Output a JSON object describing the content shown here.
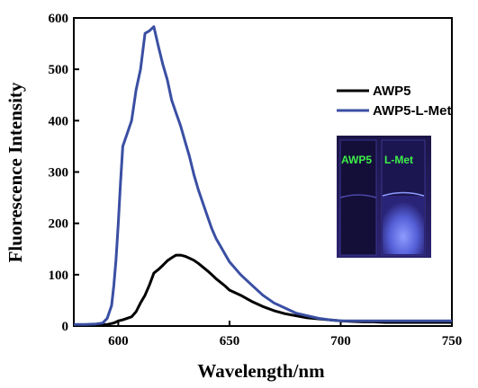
{
  "chart_data": {
    "type": "line",
    "xlabel": "Wavelength/nm",
    "ylabel": "Fluorescence Intensity",
    "xlim": [
      580,
      750
    ],
    "ylim": [
      0,
      600
    ],
    "xticks": [
      600,
      650,
      700,
      750
    ],
    "yticks": [
      0,
      100,
      200,
      300,
      400,
      500,
      600
    ],
    "grid": false,
    "legend": "top-right",
    "series": [
      {
        "name": "AWP5",
        "color": "#000000",
        "x": [
          580,
          585,
          590,
          595,
          598,
          600,
          602,
          604,
          606,
          608,
          610,
          612,
          614,
          616,
          618,
          620,
          622,
          624,
          626,
          628,
          630,
          632,
          634,
          636,
          638,
          640,
          642,
          644,
          646,
          648,
          650,
          655,
          660,
          665,
          670,
          675,
          680,
          685,
          690,
          695,
          700,
          705,
          710,
          715,
          720,
          725,
          730,
          735,
          740,
          745,
          750
        ],
        "y": [
          2,
          2,
          2,
          3,
          6,
          10,
          12,
          15,
          18,
          28,
          45,
          60,
          80,
          103,
          110,
          118,
          127,
          133,
          138,
          138,
          136,
          132,
          128,
          122,
          115,
          108,
          100,
          92,
          85,
          78,
          70,
          60,
          48,
          38,
          30,
          24,
          20,
          16,
          14,
          12,
          10,
          9,
          8,
          8,
          7,
          7,
          7,
          7,
          7,
          7,
          7
        ]
      },
      {
        "name": "AWP5-L-Met",
        "color": "#3a4fa3",
        "x": [
          580,
          585,
          590,
          593,
          595,
          597,
          598,
          599,
          600,
          601,
          602,
          604,
          606,
          608,
          610,
          612,
          614,
          616,
          618,
          620,
          622,
          624,
          626,
          628,
          630,
          632,
          634,
          636,
          638,
          640,
          642,
          644,
          646,
          648,
          650,
          655,
          660,
          665,
          670,
          675,
          680,
          685,
          690,
          695,
          700,
          705,
          710,
          715,
          720,
          725,
          730,
          735,
          740,
          745,
          750
        ],
        "y": [
          3,
          3,
          4,
          6,
          15,
          40,
          80,
          130,
          200,
          280,
          350,
          375,
          400,
          460,
          500,
          570,
          575,
          583,
          545,
          510,
          480,
          440,
          415,
          390,
          360,
          330,
          295,
          265,
          240,
          215,
          190,
          170,
          155,
          140,
          125,
          100,
          80,
          60,
          45,
          35,
          25,
          20,
          15,
          12,
          10,
          10,
          10,
          10,
          10,
          10,
          10,
          10,
          10,
          10,
          10
        ]
      }
    ],
    "inset_labels": [
      "AWP5",
      "L-Met"
    ]
  },
  "colors": {
    "inset_background": "#1a1344",
    "inset_glow": "#6a7cf0",
    "inset_label": "#3ef04a"
  }
}
